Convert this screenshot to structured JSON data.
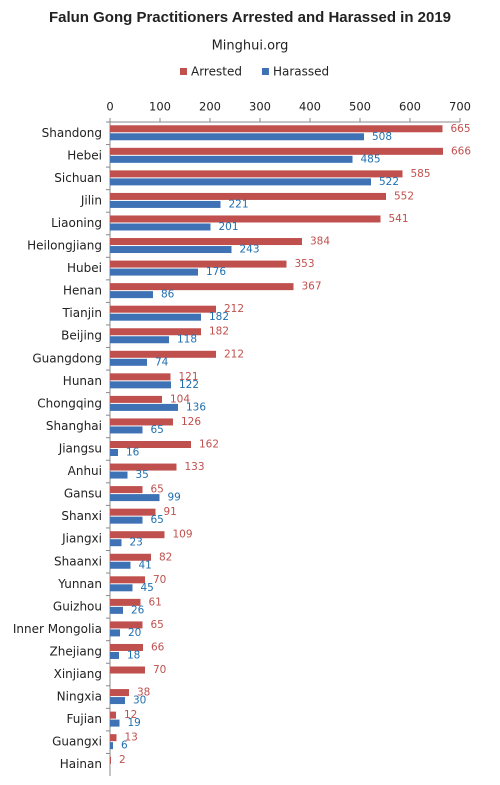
{
  "chart_data": {
    "type": "hbar",
    "title": "Falun Gong Practitioners Arrested and Harassed in 2019",
    "subtitle": "Minghui.org",
    "categories": [
      "Shandong",
      "Hebei",
      "Sichuan",
      "Jilin",
      "Liaoning",
      "Heilongjiang",
      "Hubei",
      "Henan",
      "Tianjin",
      "Beijing",
      "Guangdong",
      "Hunan",
      "Chongqing",
      "Shanghai",
      "Jiangsu",
      "Anhui",
      "Gansu",
      "Shanxi",
      "Jiangxi",
      "Shaanxi",
      "Yunnan",
      "Guizhou",
      "Inner Mongolia",
      "Zhejiang",
      "Xinjiang",
      "Ningxia",
      "Fujian",
      "Guangxi",
      "Hainan"
    ],
    "series": [
      {
        "name": "Arrested",
        "color": "#c0504d",
        "label_color": "#c0504d",
        "values": [
          665,
          666,
          585,
          552,
          541,
          384,
          353,
          367,
          212,
          182,
          212,
          121,
          104,
          126,
          162,
          133,
          65,
          91,
          109,
          82,
          70,
          61,
          65,
          66,
          70,
          38,
          12,
          13,
          2
        ]
      },
      {
        "name": "Harassed",
        "color": "#3f72b5",
        "label_color": "#1f6fb0",
        "values": [
          508,
          485,
          522,
          221,
          201,
          243,
          176,
          86,
          182,
          118,
          74,
          122,
          136,
          65,
          16,
          35,
          99,
          65,
          23,
          41,
          45,
          26,
          20,
          18,
          null,
          30,
          19,
          6,
          null
        ]
      }
    ],
    "xlim": [
      0,
      700
    ],
    "xticks": [
      0,
      100,
      200,
      300,
      400,
      500,
      600,
      700
    ],
    "grid": false,
    "legend": "top"
  }
}
